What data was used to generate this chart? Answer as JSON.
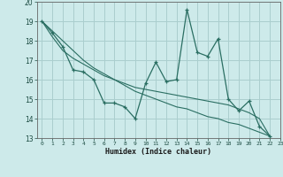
{
  "xlabel": "Humidex (Indice chaleur)",
  "background_color": "#cdeaea",
  "grid_color": "#aacece",
  "line_color": "#2a6e62",
  "xlim": [
    -0.5,
    23
  ],
  "ylim": [
    13,
    20
  ],
  "xticks": [
    0,
    1,
    2,
    3,
    4,
    5,
    6,
    7,
    8,
    9,
    10,
    11,
    12,
    13,
    14,
    15,
    16,
    17,
    18,
    19,
    20,
    21,
    22,
    23
  ],
  "yticks": [
    13,
    14,
    15,
    16,
    17,
    18,
    19,
    20
  ],
  "zigzag": [
    19.0,
    18.4,
    17.7,
    16.5,
    16.4,
    16.0,
    14.8,
    14.8,
    14.6,
    14.0,
    15.8,
    16.9,
    15.9,
    16.0,
    19.6,
    17.4,
    17.2,
    18.1,
    15.0,
    14.4,
    14.9,
    13.6,
    13.1
  ],
  "line1": [
    19.0,
    18.5,
    18.0,
    17.5,
    17.0,
    16.6,
    16.3,
    16.0,
    15.7,
    15.4,
    15.2,
    15.0,
    14.8,
    14.6,
    14.5,
    14.3,
    14.1,
    14.0,
    13.8,
    13.7,
    13.5,
    13.3,
    13.1
  ],
  "line2": [
    19.0,
    18.2,
    17.5,
    17.1,
    16.8,
    16.5,
    16.2,
    16.0,
    15.8,
    15.6,
    15.5,
    15.4,
    15.3,
    15.2,
    15.1,
    15.0,
    14.9,
    14.8,
    14.7,
    14.5,
    14.3,
    14.0,
    13.1
  ]
}
